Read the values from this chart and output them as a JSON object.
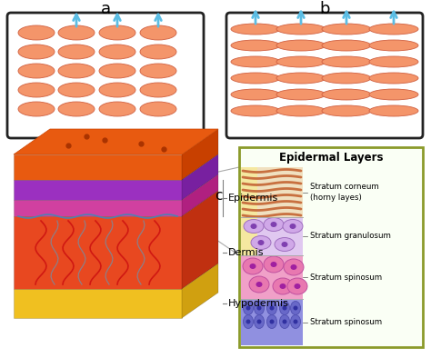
{
  "title_a": "a",
  "title_b": "b",
  "title_c": "c",
  "epidermal_layers_title": "Epidermal Layers",
  "layers": [
    "Stratum corneum\n(horny layes)",
    "Stratum granulosum",
    "Stratum spinosum",
    "Stratum spinosum"
  ],
  "skin_labels": [
    "Epidermis",
    "Dermis",
    "Hypodermis"
  ],
  "corneocyte_color": "#F4956A",
  "corneocyte_edge": "#D06040",
  "arrow_color": "#5BBDE4",
  "box_bg": "#FFFFFF",
  "box_edge": "#222222",
  "bg_color": "#FFFFFF",
  "epidermal_box_edge": "#8B9A2A",
  "skin_orange": "#E85A10",
  "skin_purple": "#9B30C0",
  "skin_magenta": "#D040A0",
  "skin_yellow": "#F0C020",
  "sc_strip": "#F0E0C0",
  "sc_line": "#C87040",
  "sg_strip": "#E0C8F0",
  "sg_cell": "#D0A8E8",
  "sg_nucleus": "#8040B0",
  "ss_strip": "#F0A0C8",
  "ss_cell": "#E878B0",
  "ss_nucleus": "#A020A0",
  "sb_strip": "#9090E0",
  "sb_cell": "#6868C8",
  "sb_nucleus": "#3030A0",
  "yellow_col": "#F5E8A0"
}
